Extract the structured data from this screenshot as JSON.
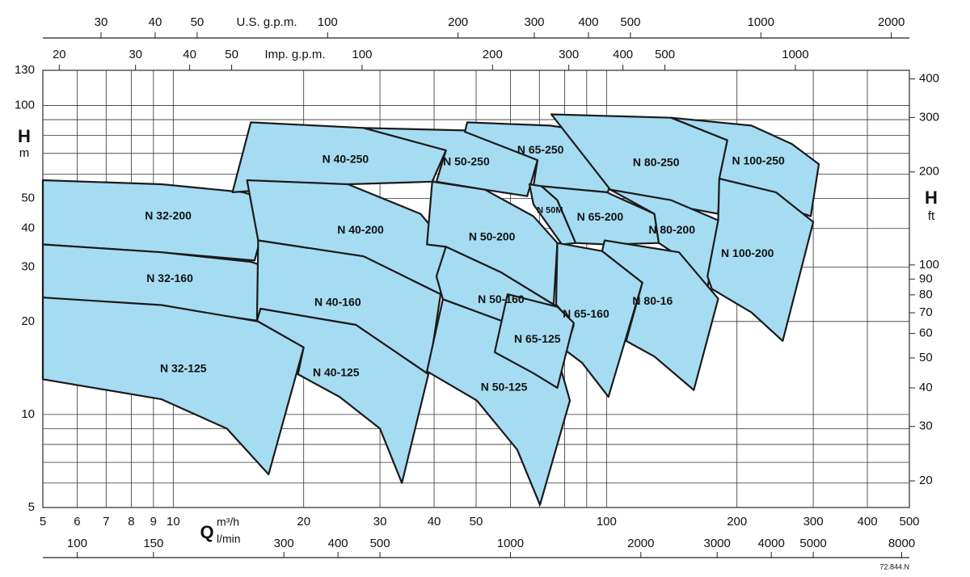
{
  "chart_data": {
    "type": "region",
    "log_scale": true,
    "grid": true,
    "fill_color": "#a6dcf2",
    "stroke_color": "#1a1a1a",
    "x_symbol": "Q",
    "x_label": "m³/h",
    "xlim": [
      5,
      500
    ],
    "xticks": [
      5,
      6,
      7,
      8,
      9,
      10,
      20,
      30,
      40,
      50,
      100,
      200,
      300,
      400,
      500
    ],
    "xgrid_minor": [
      60,
      70,
      80,
      90
    ],
    "y_symbol": "H",
    "y_label": "m",
    "ylim": [
      5,
      130
    ],
    "yticks": [
      5,
      10,
      20,
      30,
      40,
      50,
      100,
      130
    ],
    "ygrid_minor": [
      6,
      7,
      8,
      9,
      60,
      70,
      80,
      90
    ],
    "y2_symbol": "H",
    "y2_label": "ft",
    "y2lim": [
      16.4,
      426.5
    ],
    "y2ticks": [
      20,
      30,
      40,
      50,
      60,
      70,
      80,
      90,
      100,
      200,
      300,
      400
    ],
    "top_axes": [
      {
        "label": "U.S. g.p.m.",
        "lim": [
          22.02,
          2201.5
        ],
        "ticks": [
          30,
          40,
          50,
          100,
          200,
          300,
          400,
          500,
          1000,
          2000
        ]
      },
      {
        "label": "Imp. g.p.m.",
        "lim": [
          18.33,
          1833
        ],
        "ticks": [
          20,
          30,
          40,
          50,
          100,
          200,
          300,
          400,
          500,
          1000
        ]
      }
    ],
    "bottom_axis2": {
      "label": "l/min",
      "lim": [
        83.33,
        8333
      ],
      "ticks": [
        100,
        150,
        300,
        400,
        500,
        1000,
        2000,
        3000,
        4000,
        5000,
        8000
      ]
    },
    "note": "72.844.N",
    "regions": [
      {
        "name": "N 32-200",
        "q": [
          5,
          9.4,
          14.5,
          16.8,
          15.4,
          9.4,
          5
        ],
        "h": [
          57.3,
          55.6,
          52.4,
          49.1,
          31.5,
          33.5,
          35.5
        ]
      },
      {
        "name": "N 32-160",
        "q": [
          5,
          9.4,
          15.1,
          16.8,
          15.7,
          9.4,
          5
        ],
        "h": [
          35.5,
          33.5,
          31.2,
          29.7,
          20.1,
          22.3,
          23.9
        ]
      },
      {
        "name": "N 32-125",
        "q": [
          5,
          9.4,
          15.7,
          20,
          16.6,
          13.3,
          9.4,
          5
        ],
        "h": [
          23.9,
          22.6,
          20,
          16.5,
          6.4,
          9,
          11.2,
          13
        ]
      },
      {
        "name": "N 40-250",
        "q": [
          15.1,
          27.5,
          42.6,
          39.6,
          25.3,
          13.7
        ],
        "h": [
          88.2,
          84.6,
          71.6,
          56.7,
          55.6,
          52.4
        ]
      },
      {
        "name": "N 40-200",
        "q": [
          14.8,
          25.3,
          37.2,
          42.6,
          41.4,
          27.5,
          15.7
        ],
        "h": [
          57.3,
          55.6,
          44.6,
          35.5,
          24.5,
          32.5,
          36.6
        ]
      },
      {
        "name": "N 40-160",
        "q": [
          15.7,
          27.5,
          41.4,
          38.8,
          26.4,
          15.9,
          15.6
        ],
        "h": [
          36.6,
          32.5,
          24.5,
          13.5,
          19.5,
          22,
          20.1
        ]
      },
      {
        "name": "N 40-125",
        "q": [
          15.6,
          15.9,
          26.4,
          38.8,
          33.7,
          30,
          24.2,
          19.4,
          20
        ],
        "h": [
          20.1,
          22,
          19.5,
          13.5,
          6,
          9,
          11.4,
          13.5,
          16.5
        ]
      },
      {
        "name": "N 50-250",
        "q": [
          27.5,
          48.1,
          69.3,
          65.6,
          52.4,
          40.5,
          42.6
        ],
        "h": [
          84.6,
          83,
          66.6,
          50.9,
          53.4,
          56.7,
          71.6
        ]
      },
      {
        "name": "N 50-200",
        "q": [
          39.6,
          52.4,
          67.8,
          77,
          75.5,
          57.2,
          42.6,
          38.5
        ],
        "h": [
          56.7,
          53.4,
          43.8,
          35.9,
          22.7,
          28.8,
          34.9,
          35.5
        ]
      },
      {
        "name": "N 50-160",
        "q": [
          42.6,
          57.2,
          77,
          80.5,
          77,
          57.2,
          41.9,
          40.5
        ],
        "h": [
          34.9,
          28.8,
          22.3,
          20.1,
          15.4,
          20.1,
          23.6,
          28
        ]
      },
      {
        "name": "N 50-125",
        "q": [
          41.9,
          57.2,
          77,
          82.3,
          70.2,
          62.2,
          50.2,
          38.5
        ],
        "h": [
          23.6,
          20.1,
          15.4,
          11.1,
          5.1,
          7.7,
          11.1,
          13.8
        ]
      },
      {
        "name": "N 65-250",
        "q": [
          47.7,
          74,
          109,
          100.7,
          67.8,
          69.3,
          47.1
        ],
        "h": [
          88.2,
          86.1,
          79.6,
          52.4,
          54.8,
          66.6,
          82.2
        ]
      },
      {
        "name": "N 50M",
        "q": [
          66.4,
          70.8,
          77,
          84.9,
          78.9,
          67.8
        ],
        "h": [
          55.6,
          54.8,
          49.4,
          35.9,
          35.5,
          47.9
        ]
      },
      {
        "name": "N 65-200",
        "q": [
          70.8,
          100,
          129,
          132,
          100,
          84.9,
          77
        ],
        "h": [
          54.8,
          52.4,
          44.6,
          35.9,
          35.5,
          35.9,
          49.4
        ]
      },
      {
        "name": "N 65-160",
        "q": [
          77,
          97.7,
          121,
          101,
          87.8,
          80.5,
          84,
          76.5
        ],
        "h": [
          35.9,
          33.8,
          26.7,
          11.4,
          14.7,
          16.1,
          19.5,
          22.7
        ]
      },
      {
        "name": "N 65-125",
        "q": [
          59.1,
          77,
          84,
          77,
          67.8,
          55.2
        ],
        "h": [
          24.5,
          22.3,
          19.8,
          12.2,
          13.6,
          15.9
        ]
      },
      {
        "name": "N 80-250",
        "q": [
          74.6,
          141,
          190,
          180.7,
          132,
          102
        ],
        "h": [
          93.6,
          91.3,
          77.2,
          44.6,
          48.5,
          53.4
        ]
      },
      {
        "name": "N 80-200",
        "q": [
          102,
          141,
          181,
          171,
          150,
          132,
          129
        ],
        "h": [
          53.4,
          49.4,
          42.5,
          25.5,
          31.9,
          35.9,
          44.6
        ]
      },
      {
        "name": "N 80-16",
        "q": [
          99,
          147,
          181,
          159,
          129,
          111,
          121,
          97.7
        ],
        "h": [
          36.6,
          33.5,
          23.7,
          12,
          15.4,
          17.3,
          26.7,
          33.8
        ]
      },
      {
        "name": "N 100-250",
        "q": [
          141,
          216,
          268,
          309,
          296,
          246,
          182,
          190
        ],
        "h": [
          91.3,
          86.1,
          75,
          64.6,
          43.8,
          47.9,
          58,
          77.2
        ]
      },
      {
        "name": "N 100-200",
        "q": [
          182,
          246,
          300,
          255,
          216,
          175,
          171,
          181
        ],
        "h": [
          58,
          52.4,
          42,
          17.3,
          21.4,
          25.5,
          28,
          42.5
        ]
      }
    ]
  }
}
